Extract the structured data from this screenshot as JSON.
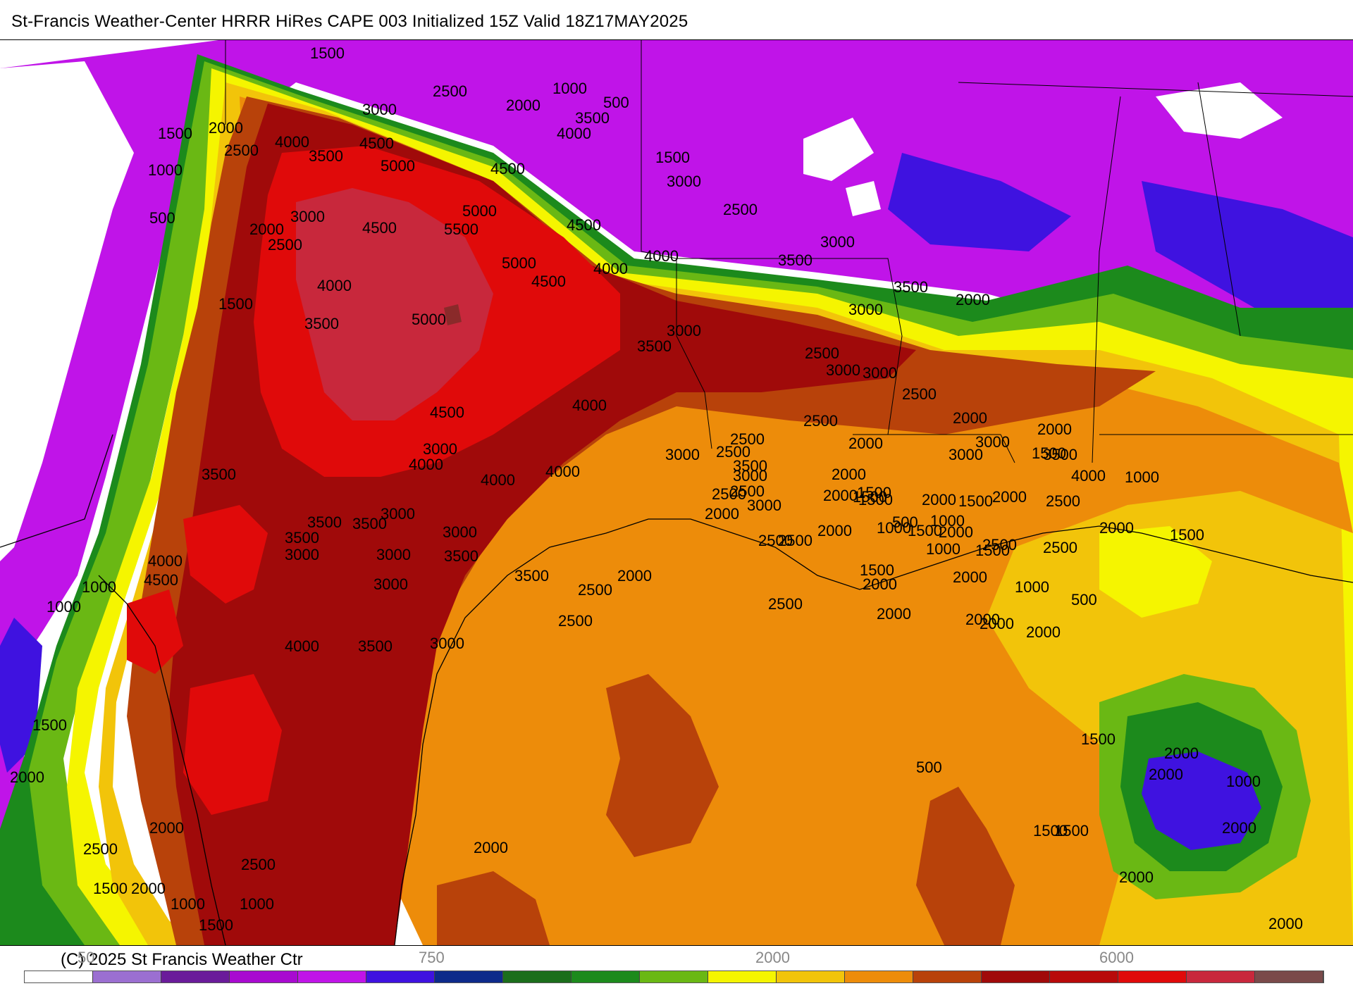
{
  "header": {
    "title": "St-Francis Weather-Center HRRR HiRes CAPE  003 Initialized  15Z Valid 18Z17MAY2025"
  },
  "map": {
    "variable": "CAPE",
    "contour_labels": [
      "1500",
      "2500",
      "1000",
      "2000",
      "500",
      "3500",
      "4000",
      "1500",
      "3000",
      "2000",
      "4000",
      "4500",
      "2500",
      "3500",
      "5000",
      "4500",
      "1500",
      "3000",
      "1000",
      "5000",
      "2500",
      "500",
      "2000",
      "3000",
      "4500",
      "5500",
      "4500",
      "3000",
      "2500",
      "3500",
      "4000",
      "5000",
      "4000",
      "4500",
      "3500",
      "1500",
      "4000",
      "2000",
      "3500",
      "5000",
      "3000",
      "3000",
      "3500",
      "2500",
      "3000",
      "2500",
      "4500",
      "4000",
      "2500",
      "2000",
      "2000",
      "3000",
      "4000",
      "3500",
      "3000",
      "3500",
      "3500",
      "3000",
      "4000",
      "3500",
      "3000",
      "2000",
      "4000",
      "3500",
      "3000",
      "4000",
      "3000",
      "2500",
      "3000",
      "3500",
      "4500",
      "1500",
      "3500",
      "2000",
      "4000",
      "3500",
      "2500",
      "1000",
      "3000",
      "3000",
      "3000",
      "2500",
      "2500",
      "1500",
      "3000",
      "3500",
      "2500",
      "2000",
      "3000",
      "2500",
      "1500",
      "2000",
      "1500",
      "2500",
      "2500",
      "4000",
      "2000",
      "2000",
      "2500",
      "1000",
      "500",
      "1000",
      "1500",
      "2000",
      "2500",
      "2000",
      "2000",
      "2000",
      "1500",
      "2000",
      "2000",
      "2000",
      "1500",
      "1000",
      "500",
      "1500",
      "1000",
      "1000",
      "1500",
      "2000",
      "2000",
      "2500",
      "3000",
      "2500",
      "2000",
      "1500",
      "2000",
      "1000",
      "500",
      "1500",
      "2000",
      "2000",
      "2000",
      "1500",
      "2000",
      "2500",
      "2000",
      "1500",
      "2000",
      "1000",
      "1500",
      "1000",
      "2500",
      "2000",
      "1500",
      "1000",
      "2000",
      "500",
      "2500"
    ],
    "colors": {
      "land_gray": "#b5b5b5",
      "white": "#ffffff",
      "lavender": "#9b6fd1",
      "purple": "#6a1b9a",
      "magenta": "#c014e8",
      "blue": "#3f12e0",
      "darkblue": "#1a237e",
      "darkgreen": "#1b6e1b",
      "green": "#6ab814",
      "yellow": "#f5f500",
      "gold": "#f2c40a",
      "orange": "#ed8c0a",
      "rust": "#b8420a",
      "maroon": "#a00a0a",
      "red": "#e00a0a",
      "crimson": "#c8283c",
      "brown": "#7a4a4a",
      "slate": "#8a9aa0",
      "lightblue": "#a8dce6"
    }
  },
  "legend": {
    "copyright": "(C) 2025 St Francis Weather Ctr",
    "scale_ticks": [
      "50",
      "750",
      "2000",
      "6000"
    ],
    "colors": [
      "#ffffff",
      "#9b6fd1",
      "#6a1b9a",
      "#a80ad0",
      "#c014e8",
      "#3f12e0",
      "#0d2a8a",
      "#1b6e1b",
      "#1c8a1c",
      "#6ab814",
      "#f5f500",
      "#f2c40a",
      "#ed8c0a",
      "#b8420a",
      "#a00a0a",
      "#b80a0a",
      "#e00a0a",
      "#c8283c",
      "#7a4a4a",
      "#8a9aa0",
      "#a8dce6"
    ]
  }
}
